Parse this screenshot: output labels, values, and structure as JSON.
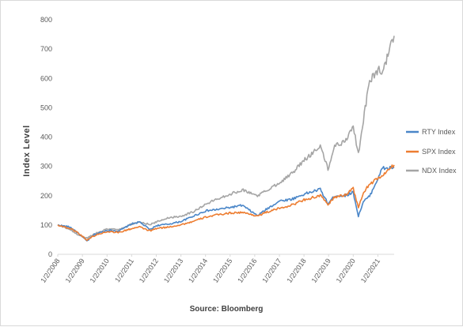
{
  "chart_data": {
    "type": "line",
    "ylabel": "Index Level",
    "xlabel": "Source: Bloomberg",
    "ylim": [
      0,
      800
    ],
    "y_ticks": [
      "0",
      "100",
      "200",
      "300",
      "400",
      "500",
      "600",
      "700",
      "800"
    ],
    "x_ticks": [
      "1/2/2008",
      "1/2/2009",
      "1/2/2010",
      "1/2/2011",
      "1/2/2012",
      "1/2/2013",
      "1/2/2014",
      "1/2/2015",
      "1/2/2016",
      "1/2/2017",
      "1/2/2018",
      "1/2/2019",
      "1/2/2020",
      "1/2/2021"
    ],
    "x_range": [
      "2008-01-02",
      "2021-08-31"
    ],
    "grid": false,
    "legend_position": "right",
    "series": [
      {
        "name": "RTY Index",
        "color": "#4a86c8",
        "x": [
          "2008-01-02",
          "2008-07-01",
          "2008-10-01",
          "2009-03-09",
          "2009-07-01",
          "2010-01-04",
          "2010-07-01",
          "2011-01-03",
          "2011-05-02",
          "2011-10-03",
          "2012-01-03",
          "2012-07-02",
          "2013-01-02",
          "2013-07-01",
          "2014-01-02",
          "2014-07-01",
          "2015-01-02",
          "2015-07-01",
          "2016-02-11",
          "2016-07-01",
          "2017-01-03",
          "2017-07-03",
          "2018-01-02",
          "2018-08-31",
          "2018-12-24",
          "2019-04-01",
          "2019-09-03",
          "2020-01-02",
          "2020-03-18",
          "2020-06-01",
          "2020-09-01",
          "2021-01-04",
          "2021-03-15",
          "2021-06-01",
          "2021-08-31"
        ],
        "values": [
          100,
          93,
          78,
          45,
          68,
          82,
          80,
          104,
          110,
          84,
          98,
          103,
          112,
          130,
          148,
          153,
          160,
          167,
          132,
          155,
          182,
          188,
          205,
          222,
          172,
          200,
          200,
          212,
          130,
          180,
          198,
          260,
          295,
          292,
          298
        ]
      },
      {
        "name": "SPX Index",
        "color": "#ed7d31",
        "x": [
          "2008-01-02",
          "2008-07-01",
          "2008-10-01",
          "2009-03-09",
          "2009-07-01",
          "2010-01-04",
          "2010-07-01",
          "2011-01-03",
          "2011-05-02",
          "2011-10-03",
          "2012-01-03",
          "2012-07-02",
          "2013-01-02",
          "2013-07-01",
          "2014-01-02",
          "2014-07-01",
          "2015-01-02",
          "2015-07-01",
          "2016-02-11",
          "2016-07-01",
          "2017-01-03",
          "2017-07-03",
          "2018-01-02",
          "2018-08-31",
          "2018-12-24",
          "2019-04-01",
          "2019-09-03",
          "2020-01-02",
          "2020-03-18",
          "2020-06-01",
          "2020-09-01",
          "2021-01-04",
          "2021-03-15",
          "2021-06-01",
          "2021-08-31"
        ],
        "values": [
          100,
          88,
          78,
          49,
          64,
          78,
          75,
          88,
          93,
          80,
          88,
          93,
          101,
          112,
          127,
          135,
          141,
          143,
          131,
          144,
          157,
          168,
          186,
          200,
          170,
          195,
          202,
          226,
          158,
          210,
          240,
          258,
          270,
          285,
          305
        ]
      },
      {
        "name": "NDX Index",
        "color": "#a5a5a5",
        "x": [
          "2008-01-02",
          "2008-07-01",
          "2008-10-01",
          "2009-03-09",
          "2009-07-01",
          "2010-01-04",
          "2010-07-01",
          "2011-01-03",
          "2011-05-02",
          "2011-10-03",
          "2012-01-03",
          "2012-07-02",
          "2013-01-02",
          "2013-07-01",
          "2014-01-02",
          "2014-07-01",
          "2015-01-02",
          "2015-07-01",
          "2016-02-11",
          "2016-07-01",
          "2017-01-03",
          "2017-07-03",
          "2018-01-02",
          "2018-08-31",
          "2018-12-24",
          "2019-04-01",
          "2019-09-03",
          "2020-01-02",
          "2020-03-18",
          "2020-06-01",
          "2020-09-01",
          "2021-01-04",
          "2021-03-15",
          "2021-06-01",
          "2021-08-31"
        ],
        "values": [
          100,
          85,
          70,
          55,
          70,
          87,
          85,
          103,
          110,
          102,
          110,
          125,
          130,
          145,
          170,
          190,
          205,
          220,
          200,
          218,
          245,
          275,
          320,
          370,
          290,
          370,
          385,
          440,
          340,
          460,
          590,
          630,
          620,
          680,
          745
        ]
      }
    ]
  }
}
